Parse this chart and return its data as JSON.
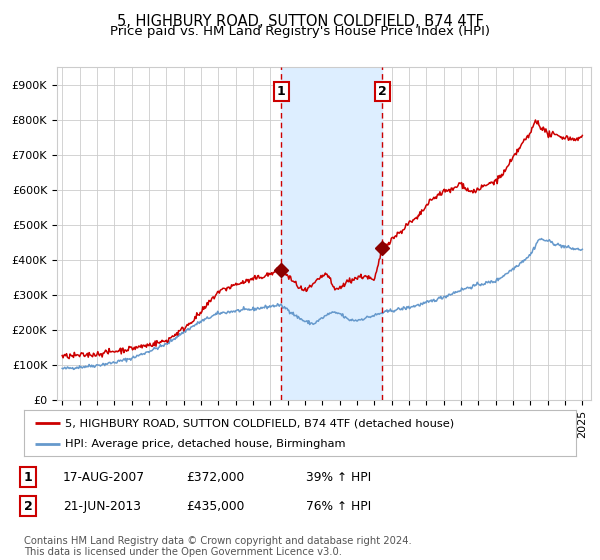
{
  "title": "5, HIGHBURY ROAD, SUTTON COLDFIELD, B74 4TF",
  "subtitle": "Price paid vs. HM Land Registry's House Price Index (HPI)",
  "ylim": [
    0,
    950000
  ],
  "yticks": [
    0,
    100000,
    200000,
    300000,
    400000,
    500000,
    600000,
    700000,
    800000,
    900000
  ],
  "ytick_labels": [
    "£0",
    "£100K",
    "£200K",
    "£300K",
    "£400K",
    "£500K",
    "£600K",
    "£700K",
    "£800K",
    "£900K"
  ],
  "sale1_date_num": 2007.625,
  "sale1_price": 372000,
  "sale2_date_num": 2013.47,
  "sale2_price": 435000,
  "shade_start": 2007.625,
  "shade_end": 2013.47,
  "line1_color": "#cc0000",
  "line2_color": "#6699cc",
  "shade_color": "#ddeeff",
  "dashed_color": "#cc0000",
  "legend_line1": "5, HIGHBURY ROAD, SUTTON COLDFIELD, B74 4TF (detached house)",
  "legend_line2": "HPI: Average price, detached house, Birmingham",
  "table_row1": [
    "1",
    "17-AUG-2007",
    "£372,000",
    "39% ↑ HPI"
  ],
  "table_row2": [
    "2",
    "21-JUN-2013",
    "£435,000",
    "76% ↑ HPI"
  ],
  "footer": "Contains HM Land Registry data © Crown copyright and database right 2024.\nThis data is licensed under the Open Government Licence v3.0.",
  "title_fontsize": 10.5,
  "subtitle_fontsize": 9.5,
  "tick_fontsize": 8,
  "background_color": "#ffffff",
  "grid_color": "#cccccc",
  "xlim_left": 1994.7,
  "xlim_right": 2025.5
}
